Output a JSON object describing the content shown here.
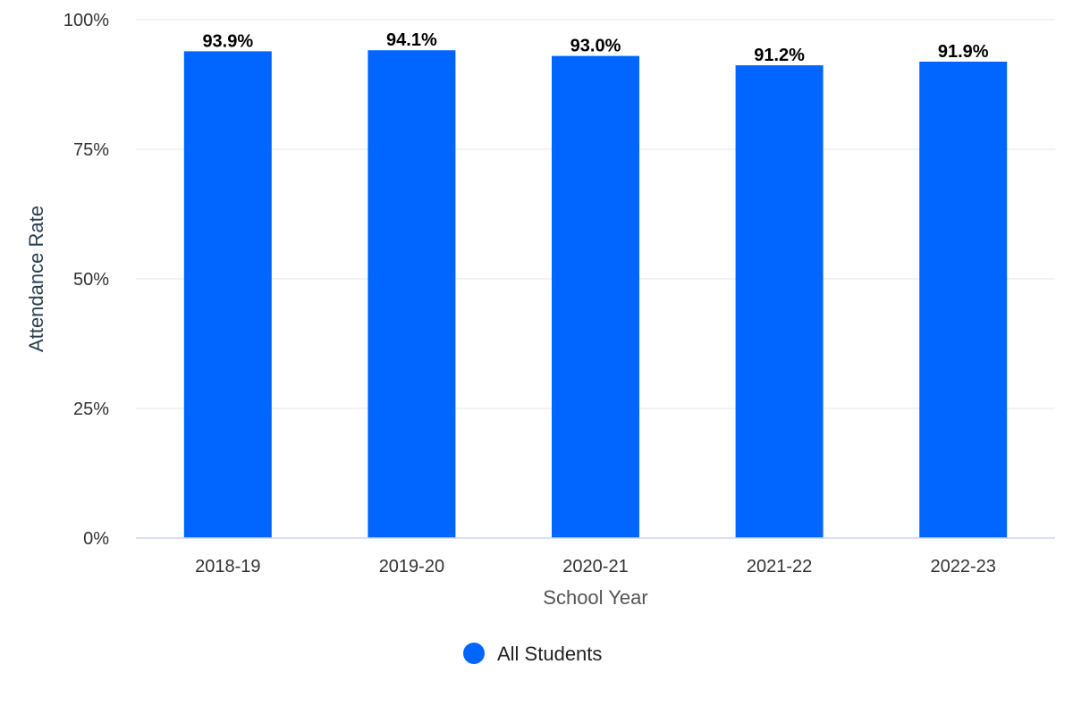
{
  "chart_data": {
    "type": "bar",
    "categories": [
      "2018-19",
      "2019-20",
      "2020-21",
      "2021-22",
      "2022-23"
    ],
    "series": [
      {
        "name": "All Students",
        "values": [
          93.9,
          94.1,
          93.0,
          91.2,
          91.9
        ],
        "color": "#0066ff"
      }
    ],
    "data_labels": [
      "93.9%",
      "94.1%",
      "93.0%",
      "91.2%",
      "91.9%"
    ],
    "xlabel": "School Year",
    "ylabel": "Attendance Rate",
    "ylim": [
      0,
      100
    ],
    "y_ticks": [
      {
        "value": 0,
        "label": "0%"
      },
      {
        "value": 25,
        "label": "25%"
      },
      {
        "value": 50,
        "label": "50%"
      },
      {
        "value": 75,
        "label": "75%"
      },
      {
        "value": 100,
        "label": "100%"
      }
    ],
    "grid": true,
    "legend": "bottom-center"
  }
}
